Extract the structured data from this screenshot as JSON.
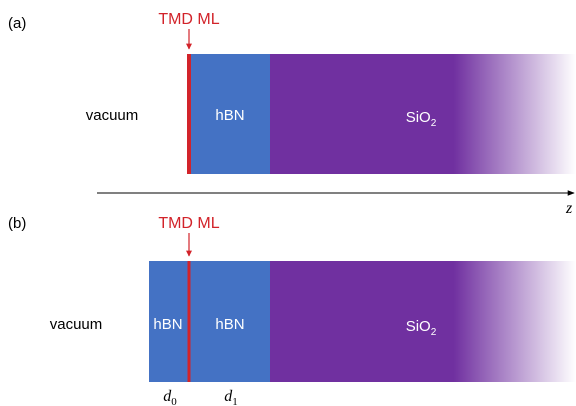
{
  "panel_a": {
    "label": "(a)",
    "marker": "TMD ML",
    "region_vacuum": "vacuum",
    "layer_hbn": "hBN",
    "layer_sio2_base": "SiO",
    "layer_sio2_sub": "2"
  },
  "axis": {
    "label": "z"
  },
  "panel_b": {
    "label": "(b)",
    "marker": "TMD ML",
    "region_vacuum": "vacuum",
    "layer_hbn_top": "hBN",
    "layer_hbn_bottom": "hBN",
    "layer_sio2_base": "SiO",
    "layer_sio2_sub": "2",
    "thickness_d0_base": "d",
    "thickness_d0_sub": "0",
    "thickness_d1_base": "d",
    "thickness_d1_sub": "1"
  },
  "colors": {
    "hbn": "#4472c4",
    "sio2": "#7030a0",
    "tmd": "#d2232a",
    "axis": "#000000"
  }
}
